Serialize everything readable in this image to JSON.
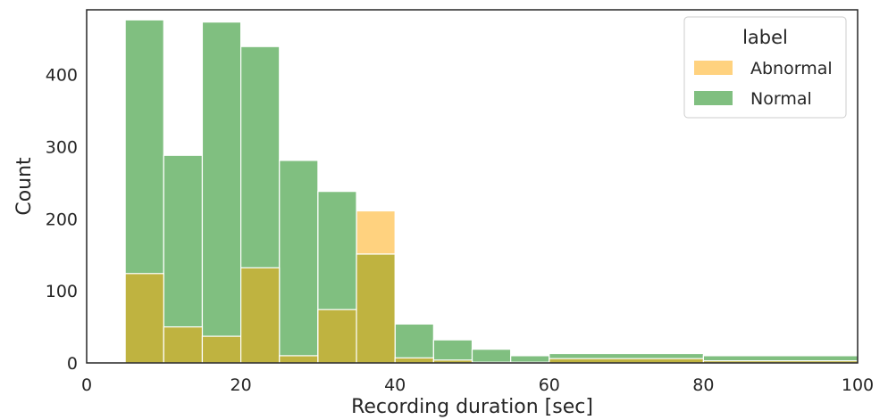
{
  "chart_data": {
    "type": "bar",
    "subtype": "histogram-overlay",
    "title": "",
    "xlabel": "Recording duration [sec]",
    "ylabel": "Count",
    "xlim": [
      0,
      100
    ],
    "ylim": [
      0,
      490
    ],
    "xticks": [
      0,
      20,
      40,
      60,
      80,
      100
    ],
    "yticks": [
      0,
      100,
      200,
      300,
      400
    ],
    "grid": false,
    "legend": {
      "title": "label",
      "position": "top-right"
    },
    "series": [
      {
        "name": "Abnormal",
        "color": "#ffd27f",
        "bins": [
          {
            "x0": 5,
            "x1": 10,
            "count": 124
          },
          {
            "x0": 10,
            "x1": 15,
            "count": 50
          },
          {
            "x0": 15,
            "x1": 20,
            "count": 37
          },
          {
            "x0": 20,
            "x1": 25,
            "count": 132
          },
          {
            "x0": 25,
            "x1": 30,
            "count": 10
          },
          {
            "x0": 30,
            "x1": 35,
            "count": 74
          },
          {
            "x0": 35,
            "x1": 40,
            "count": 211
          },
          {
            "x0": 40,
            "x1": 45,
            "count": 7
          },
          {
            "x0": 45,
            "x1": 50,
            "count": 4
          },
          {
            "x0": 50,
            "x1": 55,
            "count": 1
          },
          {
            "x0": 55,
            "x1": 60,
            "count": 1
          },
          {
            "x0": 60,
            "x1": 80,
            "count": 6
          },
          {
            "x0": 80,
            "x1": 100,
            "count": 3
          }
        ]
      },
      {
        "name": "Normal",
        "color": "#80bf80",
        "bins": [
          {
            "x0": 5,
            "x1": 10,
            "count": 476
          },
          {
            "x0": 10,
            "x1": 15,
            "count": 288
          },
          {
            "x0": 15,
            "x1": 20,
            "count": 473
          },
          {
            "x0": 20,
            "x1": 25,
            "count": 439
          },
          {
            "x0": 25,
            "x1": 30,
            "count": 281
          },
          {
            "x0": 30,
            "x1": 35,
            "count": 238
          },
          {
            "x0": 35,
            "x1": 40,
            "count": 151
          },
          {
            "x0": 40,
            "x1": 45,
            "count": 54
          },
          {
            "x0": 45,
            "x1": 50,
            "count": 32
          },
          {
            "x0": 50,
            "x1": 55,
            "count": 19
          },
          {
            "x0": 55,
            "x1": 60,
            "count": 10
          },
          {
            "x0": 60,
            "x1": 80,
            "count": 13
          },
          {
            "x0": 80,
            "x1": 100,
            "count": 10
          }
        ]
      }
    ],
    "overlap_color": "#bfb340"
  }
}
